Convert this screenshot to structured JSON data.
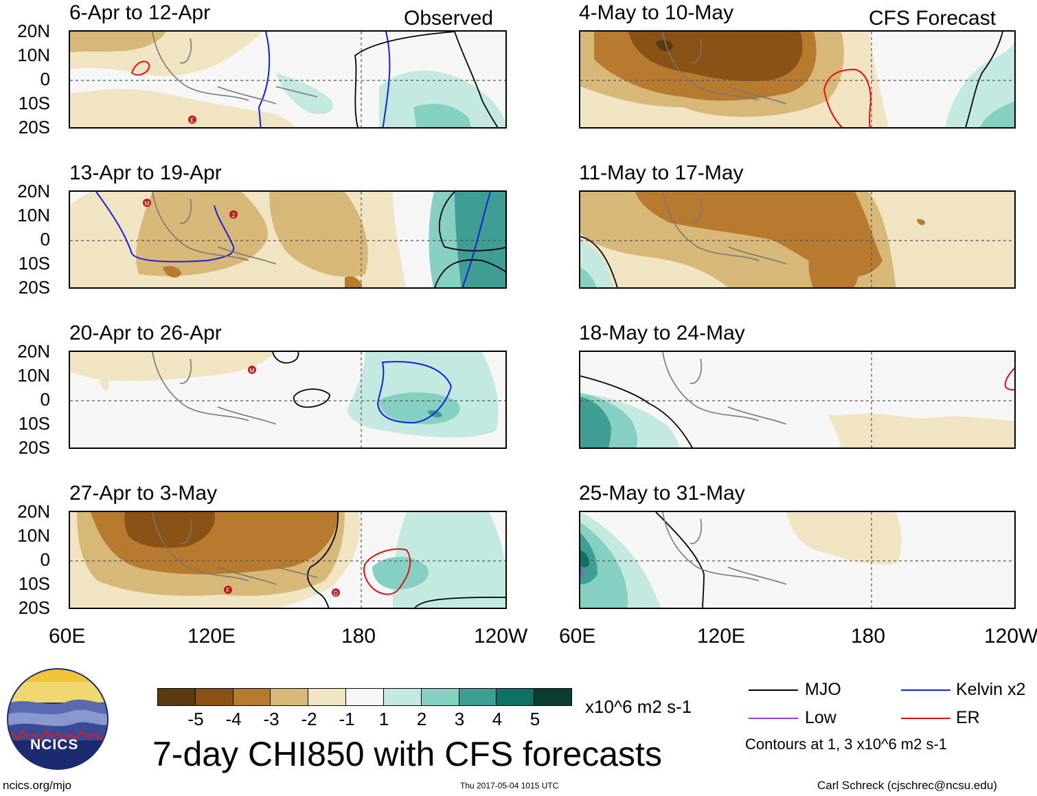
{
  "titles": {
    "observed": "Observed",
    "forecast": "CFS Forecast",
    "main": "7-day CHI850 with CFS forecasts"
  },
  "panels": [
    {
      "label": "6-Apr to 12-Apr",
      "group": "observed"
    },
    {
      "label": "13-Apr to 19-Apr",
      "group": "observed"
    },
    {
      "label": "20-Apr to 26-Apr",
      "group": "observed"
    },
    {
      "label": "27-Apr to 3-May",
      "group": "observed"
    },
    {
      "label": "4-May to 10-May",
      "group": "forecast"
    },
    {
      "label": "11-May to 17-May",
      "group": "forecast"
    },
    {
      "label": "18-May to 24-May",
      "group": "forecast"
    },
    {
      "label": "25-May to 31-May",
      "group": "forecast"
    }
  ],
  "lat_labels": [
    "20N",
    "10N",
    "0",
    "10S",
    "20S"
  ],
  "lon_labels": [
    "60E",
    "120E",
    "180",
    "120W"
  ],
  "storm_markers": [
    "E",
    "M",
    "2",
    "M",
    "F",
    "D"
  ],
  "colorbar": {
    "colors": [
      "#5a3a10",
      "#8a5215",
      "#b77a2e",
      "#d8b878",
      "#f1e4c2",
      "#f6f6f6",
      "#c4e9e1",
      "#86d0c3",
      "#3e9e94",
      "#0f7064",
      "#0a3d34"
    ],
    "ticks": [
      "-5",
      "-4",
      "-3",
      "-2",
      "-1",
      "1",
      "2",
      "3",
      "4",
      "5"
    ],
    "units": "x10^6 m2 s-1"
  },
  "legend": [
    {
      "label": "MJO",
      "color": "#000000"
    },
    {
      "label": "Kelvin x2",
      "color": "#1020e0"
    },
    {
      "label": "Low",
      "color": "#9a40e0"
    },
    {
      "label": "ER",
      "color": "#e01010"
    }
  ],
  "contours_note": "Contours at 1, 3 x10^6 m2 s-1",
  "logo_text": "NCICS",
  "footer": {
    "left": "ncics.org/mjo",
    "mid": "Thu 2017-05-04 1015 UTC",
    "right": "Carl Schreck (cjschrec@ncsu.edu)"
  }
}
